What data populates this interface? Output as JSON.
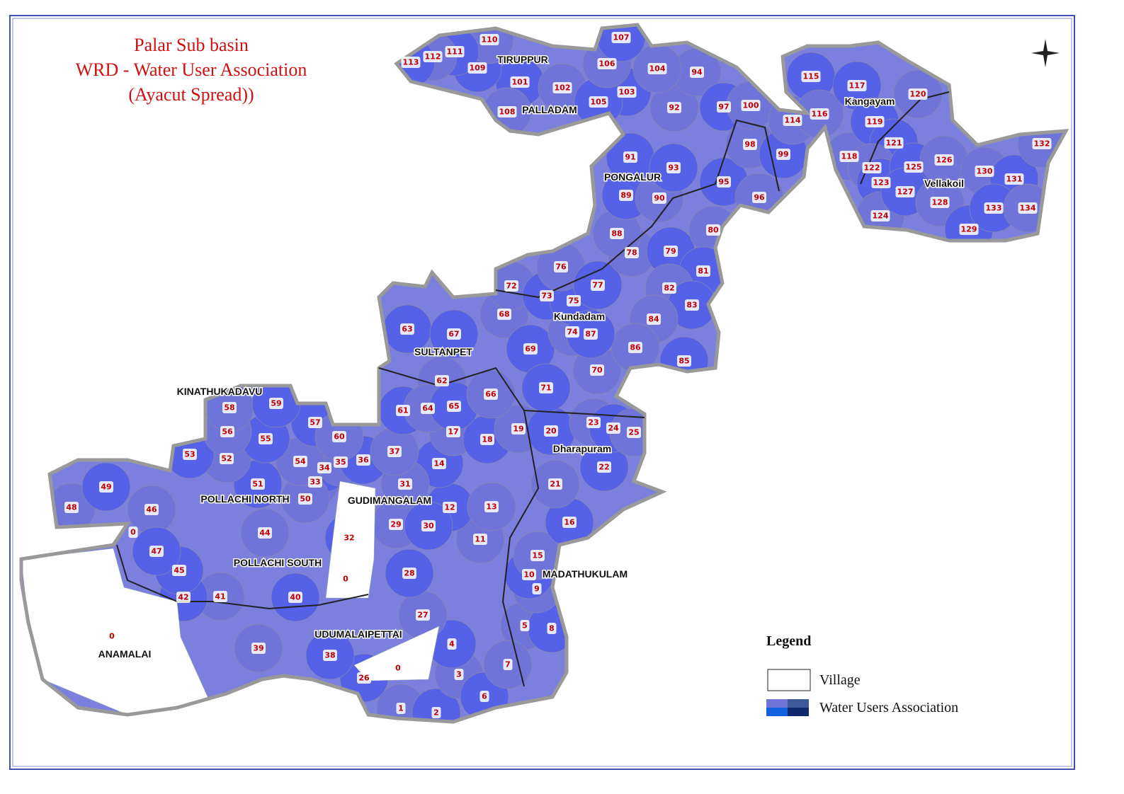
{
  "title": {
    "lines": [
      "Palar Sub basin",
      "WRD - Water User Association",
      "(Ayacut Spread))"
    ]
  },
  "places": [
    "TIRUPPUR",
    "PALLADAM",
    "PONGALUR",
    "Kangayam",
    "Vellakoil",
    "Kundadam",
    "SULTANPET",
    "KINATHUKADAVU",
    "Dharapuram",
    "POLLACHI NORTH",
    "GUDIMANGALAM",
    "POLLACHI SOUTH",
    "MADATHUKULAM",
    "UDUMALAIPETTAI",
    "ANAMALAI"
  ],
  "zones": [
    "1",
    "2",
    "3",
    "4",
    "5",
    "6",
    "7",
    "8",
    "9",
    "10",
    "11",
    "12",
    "13",
    "14",
    "15",
    "16",
    "17",
    "18",
    "19",
    "20",
    "21",
    "22",
    "23",
    "24",
    "25",
    "26",
    "27",
    "28",
    "29",
    "30",
    "31",
    "32",
    "33",
    "34",
    "35",
    "36",
    "37",
    "38",
    "39",
    "40",
    "41",
    "42",
    "44",
    "45",
    "46",
    "47",
    "48",
    "49",
    "50",
    "51",
    "52",
    "53",
    "54",
    "55",
    "56",
    "57",
    "58",
    "59",
    "60",
    "61",
    "62",
    "63",
    "64",
    "65",
    "66",
    "67",
    "68",
    "69",
    "70",
    "71",
    "72",
    "73",
    "74",
    "75",
    "76",
    "77",
    "78",
    "79",
    "80",
    "81",
    "82",
    "83",
    "84",
    "85",
    "86",
    "87",
    "88",
    "89",
    "90",
    "91",
    "92",
    "93",
    "94",
    "95",
    "96",
    "97",
    "98",
    "99",
    "100",
    "101",
    "102",
    "103",
    "104",
    "105",
    "106",
    "107",
    "108",
    "109",
    "110",
    "111",
    "112",
    "113",
    "114",
    "115",
    "116",
    "117",
    "118",
    "119",
    "120",
    "121",
    "122",
    "123",
    "124",
    "125",
    "126",
    "127",
    "128",
    "129",
    "130",
    "131",
    "132",
    "133",
    "134",
    "0",
    "0",
    "0",
    "0"
  ],
  "legend": {
    "title": "Legend",
    "items": [
      "Village",
      "Water Users Association"
    ]
  }
}
